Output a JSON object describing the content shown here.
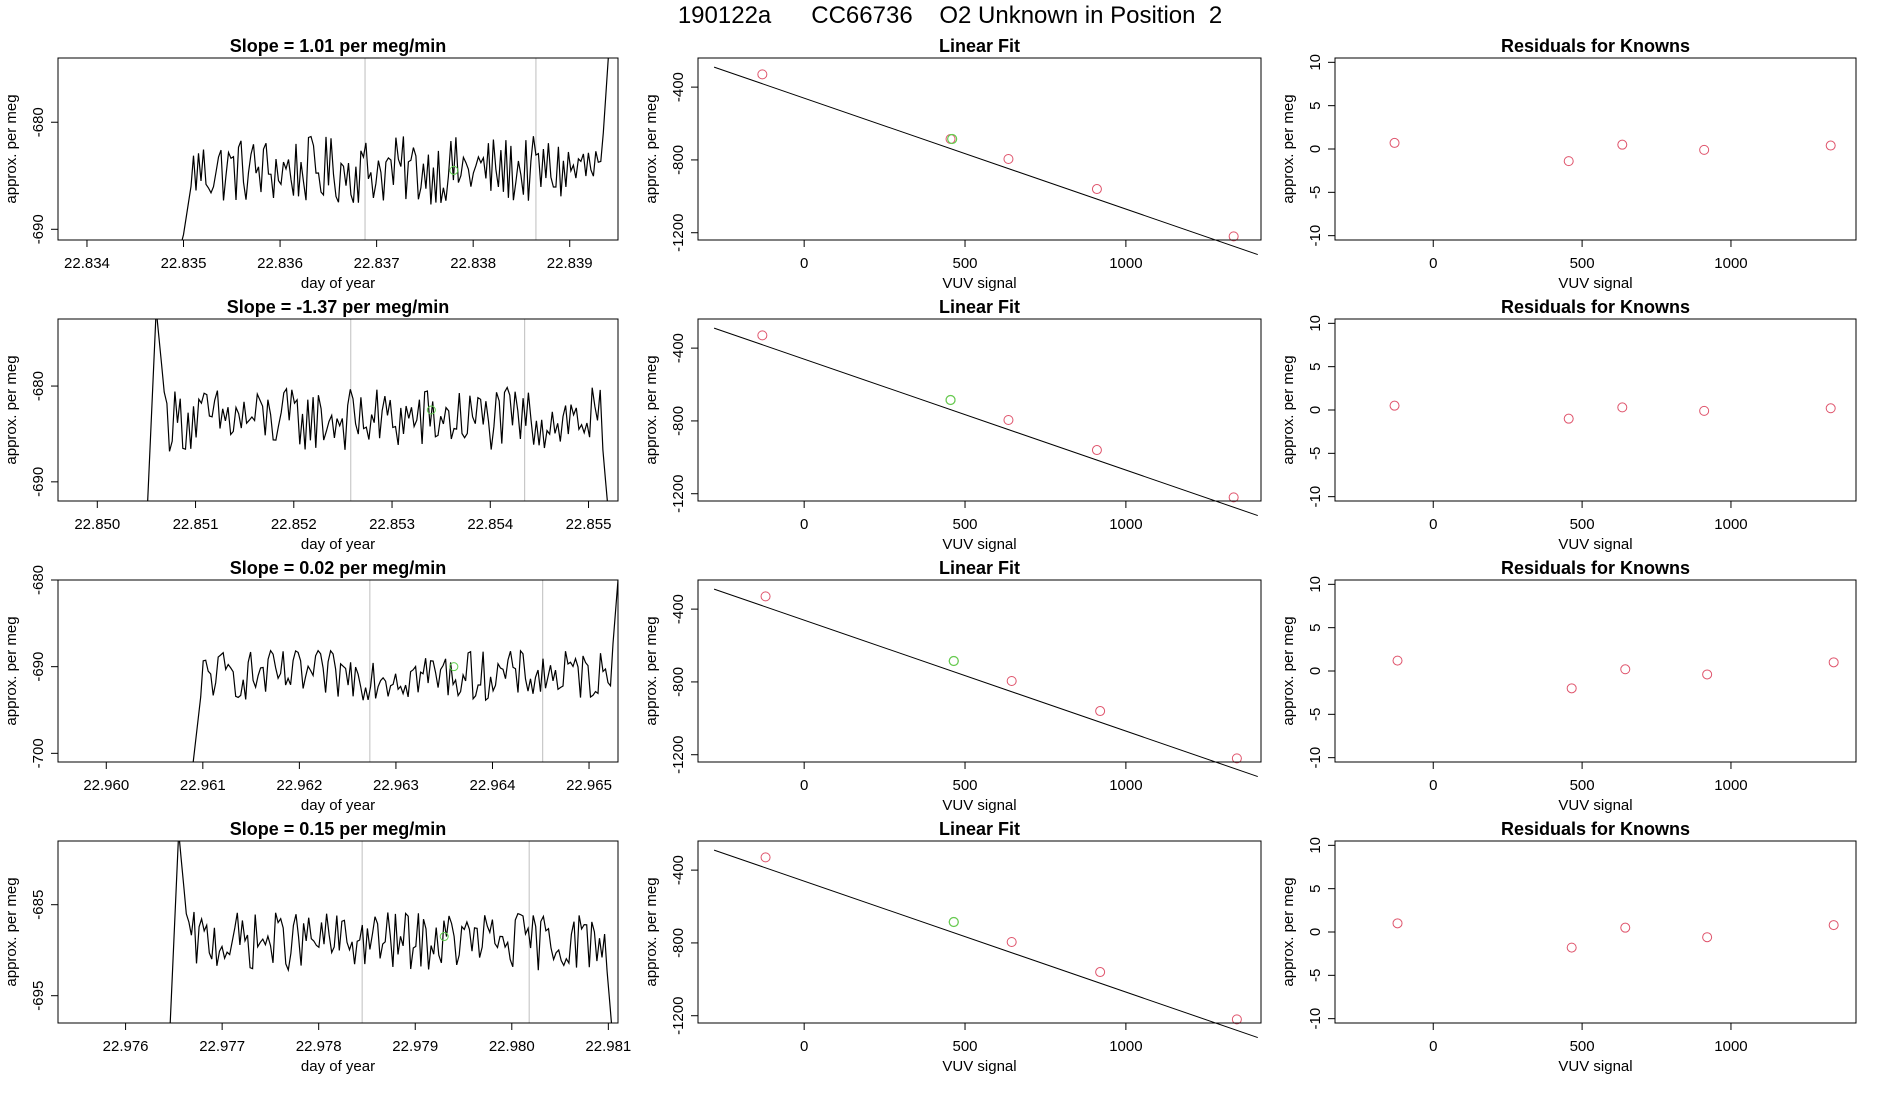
{
  "page": {
    "title": "190122a      CC66736    O2 Unknown in Position  2"
  },
  "colors": {
    "line": "#000000",
    "points": "#df536b",
    "unknown": "#61d04f",
    "marker_lines": "#bebebe"
  },
  "chart_data": [
    {
      "row": 1,
      "time_series": {
        "type": "line",
        "title": "Slope =  1.01  per meg/min",
        "xlabel": "day of year",
        "ylabel": "approx. per meg",
        "xlim": [
          22.8337,
          22.8395
        ],
        "ylim": [
          -691,
          -674
        ],
        "xticks": [
          "22.834",
          "22.835",
          "22.836",
          "22.837",
          "22.838",
          "22.839"
        ],
        "yticks": [
          "-680",
          "-690"
        ],
        "start": 22.835,
        "end": 22.8394,
        "start_level": -690.5,
        "end_level": -674,
        "mean_level": -684.5,
        "noise": 2.0,
        "markers": [
          22.83688,
          22.83865
        ],
        "unknown_point": {
          "x": 22.8378,
          "y": -684.5
        }
      },
      "linear_fit": {
        "type": "scatter",
        "title": "Linear Fit",
        "xlabel": "VUV signal",
        "ylabel": "approx. per meg",
        "xlim": [
          -330,
          1420
        ],
        "ylim": [
          -1240,
          -240
        ],
        "xticks": [
          "0",
          "500",
          "1000"
        ],
        "yticks": [
          "-400",
          "-800",
          "-1200"
        ],
        "knowns": [
          {
            "x": -130,
            "y": -330
          },
          {
            "x": 455,
            "y": -685
          },
          {
            "x": 635,
            "y": -795
          },
          {
            "x": 910,
            "y": -960
          },
          {
            "x": 1335,
            "y": -1220
          }
        ],
        "unknown": {
          "x": 460,
          "y": -685
        },
        "fit": {
          "x0": -280,
          "y0": -290,
          "x1": 1410,
          "y1": -1320
        }
      },
      "residuals": {
        "type": "scatter",
        "title": "Residuals for Knowns",
        "xlabel": "VUV signal",
        "ylabel": "approx. per meg",
        "xlim": [
          -330,
          1420
        ],
        "ylim": [
          -10.5,
          10.5
        ],
        "xticks": [
          "0",
          "500",
          "1000"
        ],
        "yticks": [
          "10",
          "5",
          "0",
          "-5",
          "-10"
        ],
        "points": [
          {
            "x": -130,
            "y": 0.7
          },
          {
            "x": 455,
            "y": -1.4
          },
          {
            "x": 635,
            "y": 0.5
          },
          {
            "x": 910,
            "y": -0.1
          },
          {
            "x": 1335,
            "y": 0.4
          }
        ]
      }
    },
    {
      "row": 2,
      "time_series": {
        "type": "line",
        "title": "Slope =  -1.37  per meg/min",
        "xlabel": "day of year",
        "ylabel": "approx. per meg",
        "xlim": [
          22.8496,
          22.8553
        ],
        "ylim": [
          -692,
          -673
        ],
        "xticks": [
          "22.850",
          "22.851",
          "22.852",
          "22.853",
          "22.854",
          "22.855"
        ],
        "yticks": [
          "-680",
          "-690"
        ],
        "start": 22.8506,
        "end": 22.8552,
        "start_level": -672,
        "end_level": -693,
        "mean_level": -683.5,
        "noise": 2.1,
        "markers": [
          22.85258,
          22.85435
        ],
        "unknown_point": {
          "x": 22.8534,
          "y": -682.5
        }
      },
      "linear_fit": {
        "type": "scatter",
        "title": "Linear Fit",
        "xlabel": "VUV signal",
        "ylabel": "approx. per meg",
        "xlim": [
          -330,
          1420
        ],
        "ylim": [
          -1240,
          -240
        ],
        "xticks": [
          "0",
          "500",
          "1000"
        ],
        "yticks": [
          "-400",
          "-800",
          "-1200"
        ],
        "knowns": [
          {
            "x": -130,
            "y": -330
          },
          {
            "x": 455,
            "y": -685
          },
          {
            "x": 635,
            "y": -795
          },
          {
            "x": 910,
            "y": -960
          },
          {
            "x": 1335,
            "y": -1220
          }
        ],
        "unknown": {
          "x": 455,
          "y": -685
        },
        "fit": {
          "x0": -280,
          "y0": -290,
          "x1": 1410,
          "y1": -1320
        }
      },
      "residuals": {
        "type": "scatter",
        "title": "Residuals for Knowns",
        "xlabel": "VUV signal",
        "ylabel": "approx. per meg",
        "xlim": [
          -330,
          1420
        ],
        "ylim": [
          -10.5,
          10.5
        ],
        "xticks": [
          "0",
          "500",
          "1000"
        ],
        "yticks": [
          "10",
          "5",
          "0",
          "-5",
          "-10"
        ],
        "points": [
          {
            "x": -130,
            "y": 0.5
          },
          {
            "x": 455,
            "y": -1.0
          },
          {
            "x": 635,
            "y": 0.3
          },
          {
            "x": 910,
            "y": -0.1
          },
          {
            "x": 1335,
            "y": 0.2
          }
        ]
      }
    },
    {
      "row": 3,
      "time_series": {
        "type": "line",
        "title": "Slope =  0.02  per meg/min",
        "xlabel": "day of year",
        "ylabel": "approx. per meg",
        "xlim": [
          22.9595,
          22.9653
        ],
        "ylim": [
          -701,
          -680
        ],
        "xticks": [
          "22.960",
          "22.961",
          "22.962",
          "22.963",
          "22.964",
          "22.965"
        ],
        "yticks": [
          "-680",
          "-690",
          "-700"
        ],
        "start": 22.9609,
        "end": 22.9653,
        "start_level": -701,
        "end_level": -680,
        "mean_level": -691,
        "noise": 1.8,
        "markers": [
          22.96273,
          22.96452
        ],
        "unknown_point": {
          "x": 22.9636,
          "y": -690
        }
      },
      "linear_fit": {
        "type": "scatter",
        "title": "Linear Fit",
        "xlabel": "VUV signal",
        "ylabel": "approx. per meg",
        "xlim": [
          -330,
          1420
        ],
        "ylim": [
          -1240,
          -240
        ],
        "xticks": [
          "0",
          "500",
          "1000"
        ],
        "yticks": [
          "-400",
          "-800",
          "-1200"
        ],
        "knowns": [
          {
            "x": -120,
            "y": -330
          },
          {
            "x": 465,
            "y": -685
          },
          {
            "x": 645,
            "y": -795
          },
          {
            "x": 920,
            "y": -960
          },
          {
            "x": 1345,
            "y": -1220
          }
        ],
        "unknown": {
          "x": 465,
          "y": -685
        },
        "fit": {
          "x0": -280,
          "y0": -290,
          "x1": 1410,
          "y1": -1320
        }
      },
      "residuals": {
        "type": "scatter",
        "title": "Residuals for Knowns",
        "xlabel": "VUV signal",
        "ylabel": "approx. per meg",
        "xlim": [
          -330,
          1420
        ],
        "ylim": [
          -10.5,
          10.5
        ],
        "xticks": [
          "0",
          "500",
          "1000"
        ],
        "yticks": [
          "10",
          "5",
          "0",
          "-5",
          "-10"
        ],
        "points": [
          {
            "x": -120,
            "y": 1.2
          },
          {
            "x": 465,
            "y": -2.0
          },
          {
            "x": 645,
            "y": 0.2
          },
          {
            "x": 920,
            "y": -0.4
          },
          {
            "x": 1345,
            "y": 1.0
          }
        ]
      }
    },
    {
      "row": 4,
      "time_series": {
        "type": "line",
        "title": "Slope =  0.15  per meg/min",
        "xlabel": "day of year",
        "ylabel": "approx. per meg",
        "xlim": [
          22.9753,
          22.9811
        ],
        "ylim": [
          -698,
          -678
        ],
        "xticks": [
          "22.976",
          "22.977",
          "22.978",
          "22.979",
          "22.980",
          "22.981"
        ],
        "yticks": [
          "-685",
          "-695"
        ],
        "start": 22.97655,
        "end": 22.98104,
        "start_level": -677,
        "end_level": -699,
        "mean_level": -689,
        "noise": 2.0,
        "markers": [
          22.97845,
          22.98018
        ],
        "unknown_point": {
          "x": 22.9793,
          "y": -688.5
        }
      },
      "linear_fit": {
        "type": "scatter",
        "title": "Linear Fit",
        "xlabel": "VUV signal",
        "ylabel": "approx. per meg",
        "xlim": [
          -330,
          1420
        ],
        "ylim": [
          -1240,
          -240
        ],
        "xticks": [
          "0",
          "500",
          "1000"
        ],
        "yticks": [
          "-400",
          "-800",
          "-1200"
        ],
        "knowns": [
          {
            "x": -120,
            "y": -330
          },
          {
            "x": 465,
            "y": -685
          },
          {
            "x": 645,
            "y": -795
          },
          {
            "x": 920,
            "y": -960
          },
          {
            "x": 1345,
            "y": -1220
          }
        ],
        "unknown": {
          "x": 465,
          "y": -685
        },
        "fit": {
          "x0": -280,
          "y0": -290,
          "x1": 1410,
          "y1": -1320
        }
      },
      "residuals": {
        "type": "scatter",
        "title": "Residuals for Knowns",
        "xlabel": "VUV signal",
        "ylabel": "approx. per meg",
        "xlim": [
          -330,
          1420
        ],
        "ylim": [
          -10.5,
          10.5
        ],
        "xticks": [
          "0",
          "500",
          "1000"
        ],
        "yticks": [
          "10",
          "5",
          "0",
          "-5",
          "-10"
        ],
        "points": [
          {
            "x": -120,
            "y": 1.0
          },
          {
            "x": 465,
            "y": -1.8
          },
          {
            "x": 645,
            "y": 0.5
          },
          {
            "x": 920,
            "y": -0.6
          },
          {
            "x": 1345,
            "y": 0.8
          }
        ]
      }
    }
  ]
}
